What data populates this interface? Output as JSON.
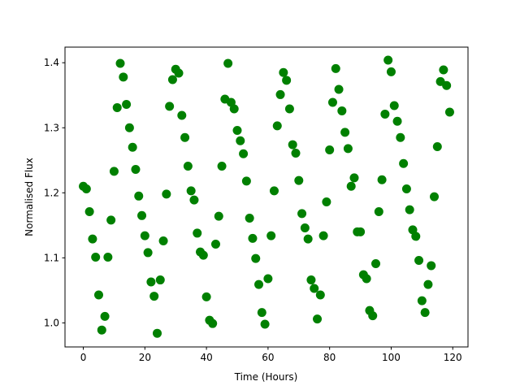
{
  "chart_data": {
    "type": "scatter",
    "color": "#008000",
    "x_label": "Time (Hours)",
    "y_label": "Normalised Flux",
    "x": [
      0,
      1,
      2,
      3,
      4,
      5,
      6,
      7,
      8,
      9,
      10,
      11,
      12,
      13,
      14,
      15,
      16,
      17,
      18,
      19,
      20,
      21,
      22,
      23,
      24,
      25,
      26,
      27,
      28,
      29,
      30,
      31,
      32,
      33,
      34,
      35,
      36,
      37,
      38,
      39,
      40,
      41,
      42,
      43,
      44,
      45,
      46,
      47,
      48,
      49,
      50,
      51,
      52,
      53,
      54,
      55,
      56,
      57,
      58,
      59,
      60,
      61,
      62,
      63,
      64,
      65,
      66,
      67,
      68,
      69,
      70,
      71,
      72,
      73,
      74,
      75,
      76,
      77,
      78,
      79,
      80,
      81,
      82,
      83,
      84,
      85,
      86,
      87,
      88,
      89,
      90,
      91,
      92,
      93,
      94,
      95,
      96,
      97,
      98,
      99,
      100,
      101,
      102,
      103,
      104,
      105,
      106,
      107,
      108,
      109,
      110,
      111,
      112,
      113,
      114,
      115,
      116,
      117,
      118,
      119
    ],
    "values": [
      1.21,
      1.206,
      1.171,
      1.129,
      1.101,
      1.043,
      0.989,
      1.01,
      1.101,
      1.158,
      1.233,
      1.331,
      1.399,
      1.378,
      1.336,
      1.3,
      1.27,
      1.236,
      1.195,
      1.165,
      1.134,
      1.108,
      1.063,
      1.041,
      0.984,
      1.066,
      1.126,
      1.198,
      1.333,
      1.374,
      1.39,
      1.384,
      1.319,
      1.285,
      1.241,
      1.203,
      1.189,
      1.138,
      1.109,
      1.104,
      1.04,
      1.004,
      0.999,
      1.121,
      1.164,
      1.241,
      1.344,
      1.399,
      1.339,
      1.329,
      1.296,
      1.28,
      1.26,
      1.218,
      1.161,
      1.13,
      1.099,
      1.059,
      1.016,
      0.998,
      1.068,
      1.134,
      1.203,
      1.303,
      1.351,
      1.385,
      1.373,
      1.329,
      1.274,
      1.261,
      1.219,
      1.168,
      1.146,
      1.129,
      1.066,
      1.053,
      1.006,
      1.043,
      1.134,
      1.186,
      1.266,
      1.339,
      1.391,
      1.359,
      1.326,
      1.293,
      1.268,
      1.21,
      1.223,
      1.14,
      1.14,
      1.074,
      1.068,
      1.019,
      1.011,
      1.091,
      1.171,
      1.22,
      1.321,
      1.404,
      1.386,
      1.334,
      1.31,
      1.285,
      1.245,
      1.206,
      1.174,
      1.143,
      1.133,
      1.096,
      1.034,
      1.016,
      1.059,
      1.088,
      1.194,
      1.271,
      1.371,
      1.389,
      1.365,
      1.324
    ],
    "xlim": [
      -5.95,
      124.95
    ],
    "xticks": [
      0,
      20,
      40,
      60,
      80,
      100,
      120
    ],
    "ylim": [
      0.963,
      1.424
    ],
    "yticks": [
      {
        "value": 1,
        "label": "1.0"
      },
      1.1,
      {
        "value": 1.2,
        "label": "1.2"
      },
      1.3,
      1.4
    ],
    "grid": false
  }
}
